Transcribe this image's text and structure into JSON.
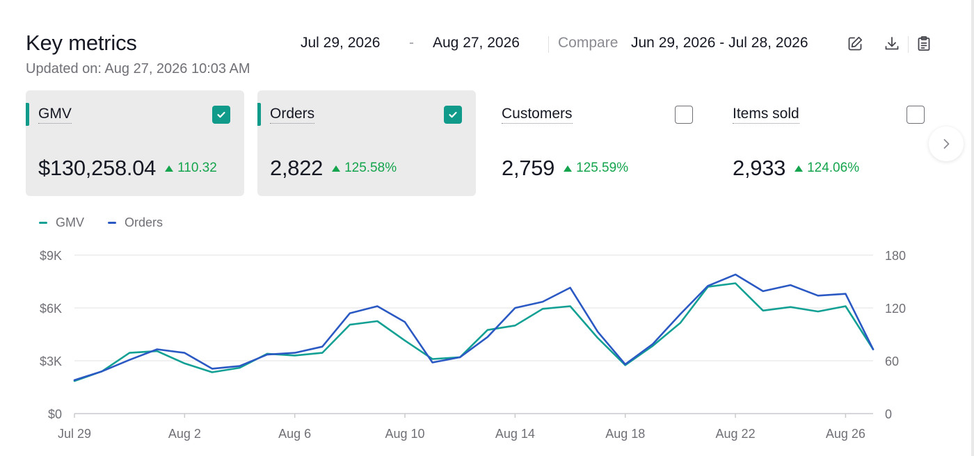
{
  "header": {
    "title": "Key metrics",
    "updated": "Updated on: Aug 27, 2026 10:03 AM"
  },
  "toolbar": {
    "date_start": "Jul 29, 2026",
    "date_separator": "-",
    "date_end": "Aug 27, 2026",
    "compare_label": "Compare",
    "compare_range": "Jun 29, 2026 - Jul 28, 2026",
    "icons": [
      "edit-icon",
      "download-icon",
      "clipboard-icon"
    ]
  },
  "cards": [
    {
      "label": "GMV",
      "value": "$130,258.04",
      "trend": "110.32",
      "selected": true
    },
    {
      "label": "Orders",
      "value": "2,822",
      "trend": "125.58%",
      "selected": true
    },
    {
      "label": "Customers",
      "value": "2,759",
      "trend": "125.59%",
      "selected": false
    },
    {
      "label": "Items sold",
      "value": "2,933",
      "trend": "124.06%",
      "selected": false
    }
  ],
  "colors": {
    "accent": "#0f9a8a",
    "gmv_line": "#13a094",
    "orders_line": "#2b59c3",
    "trend_up": "#14a44d"
  },
  "chart_data": {
    "type": "line",
    "legend": [
      "GMV",
      "Orders"
    ],
    "legend_position": "top-left",
    "x": [
      "Jul 29",
      "Jul 30",
      "Jul 31",
      "Aug 1",
      "Aug 2",
      "Aug 3",
      "Aug 4",
      "Aug 5",
      "Aug 6",
      "Aug 7",
      "Aug 8",
      "Aug 9",
      "Aug 10",
      "Aug 11",
      "Aug 12",
      "Aug 13",
      "Aug 14",
      "Aug 15",
      "Aug 16",
      "Aug 17",
      "Aug 18",
      "Aug 19",
      "Aug 20",
      "Aug 21",
      "Aug 22",
      "Aug 23",
      "Aug 24",
      "Aug 25",
      "Aug 26",
      "Aug 27"
    ],
    "x_ticks": [
      "Jul 29",
      "Aug 2",
      "Aug 6",
      "Aug 10",
      "Aug 14",
      "Aug 18",
      "Aug 22",
      "Aug 26"
    ],
    "y_left": {
      "ticks": [
        "$0",
        "$3K",
        "$6K",
        "$9K"
      ],
      "range": [
        0,
        9000
      ]
    },
    "y_right": {
      "ticks": [
        "0",
        "60",
        "120",
        "180"
      ],
      "range": [
        0,
        180
      ]
    },
    "grid": true,
    "series": [
      {
        "name": "GMV",
        "axis": "left",
        "values": [
          1850,
          2400,
          3450,
          3550,
          2850,
          2350,
          2600,
          3400,
          3300,
          3450,
          5050,
          5250,
          4150,
          3100,
          3200,
          4750,
          5000,
          5950,
          6100,
          4300,
          2750,
          3850,
          5150,
          7200,
          7400,
          5850,
          6050,
          5800,
          6100,
          3650
        ]
      },
      {
        "name": "Orders",
        "axis": "right",
        "values": [
          38,
          48,
          61,
          73,
          69,
          51,
          54,
          67,
          69,
          76,
          114,
          122,
          104,
          58,
          64,
          87,
          120,
          127,
          143,
          93,
          56,
          79,
          113,
          145,
          158,
          139,
          146,
          134,
          136,
          73
        ]
      }
    ]
  }
}
